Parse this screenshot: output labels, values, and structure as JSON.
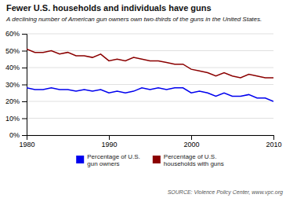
{
  "chart_data": {
    "type": "line",
    "title": "Fewer U.S. households and individuals have guns",
    "subtitle": "A declining number of American gun owners own two-thirds of the guns in the United States.",
    "source": "SOURCE: Violence Policy Center, www.vpc.org",
    "x": [
      1980,
      1981,
      1982,
      1983,
      1984,
      1985,
      1986,
      1987,
      1988,
      1989,
      1990,
      1991,
      1992,
      1993,
      1994,
      1995,
      1996,
      1997,
      1998,
      1999,
      2000,
      2001,
      2002,
      2003,
      2004,
      2005,
      2006,
      2007,
      2008,
      2009,
      2010
    ],
    "series": [
      {
        "name": "Percentage of U.S.\ngun owners",
        "color": "#0000ee",
        "values": [
          28,
          27,
          27,
          28,
          27,
          27,
          26,
          27,
          26,
          27,
          25,
          26,
          25,
          26,
          28,
          27,
          28,
          27,
          28,
          28,
          25,
          26,
          25,
          23,
          25,
          23,
          23,
          24,
          22,
          22,
          20
        ]
      },
      {
        "name": "Percentage of U.S.\nhouseholds with guns",
        "color": "#8b0000",
        "values": [
          51,
          49,
          49,
          50,
          48,
          49,
          47,
          47,
          46,
          48,
          44,
          45,
          44,
          46,
          45,
          44,
          44,
          43,
          42,
          42,
          39,
          38,
          37,
          35,
          37,
          35,
          34,
          36,
          35,
          34,
          34
        ]
      }
    ],
    "xlim": [
      1980,
      2010
    ],
    "xticks": [
      1980,
      1990,
      2000,
      2010
    ],
    "ylim": [
      0,
      60
    ],
    "yticks": [
      {
        "value": 0,
        "label": "0%"
      },
      {
        "value": 10,
        "label": "10%"
      },
      {
        "value": 20,
        "label": "20%"
      },
      {
        "value": 30,
        "label": "30%"
      },
      {
        "value": 40,
        "label": "40%"
      },
      {
        "value": 50,
        "label": "50%"
      },
      {
        "value": 60,
        "label": "60%"
      }
    ],
    "grid": true,
    "legend": "bottom"
  }
}
